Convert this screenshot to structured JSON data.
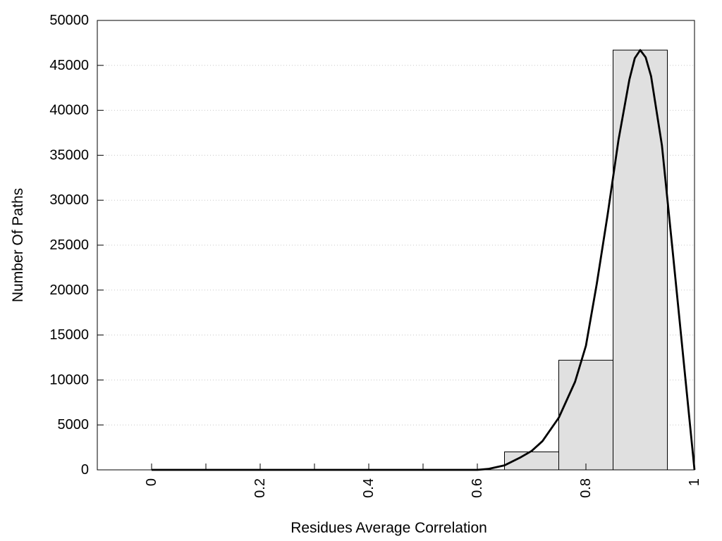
{
  "chart_data": {
    "type": "bar",
    "title": "",
    "xlabel": "Residues Average Correlation",
    "ylabel": "Number Of Paths",
    "xlim": [
      -0.1,
      1.0
    ],
    "ylim": [
      0,
      50000
    ],
    "x_ticks": [
      0,
      0.2,
      0.4,
      0.6,
      0.8,
      1
    ],
    "x_tick_labels": [
      "0",
      "0.2",
      "0.4",
      "0.6",
      "0.8",
      "1"
    ],
    "x_minor_ticks": [
      0.1,
      0.3,
      0.5
    ],
    "y_ticks": [
      0,
      5000,
      10000,
      15000,
      20000,
      25000,
      30000,
      35000,
      40000,
      45000,
      50000
    ],
    "y_tick_labels": [
      "0",
      "5000",
      "10000",
      "15000",
      "20000",
      "25000",
      "30000",
      "35000",
      "40000",
      "45000",
      "50000"
    ],
    "grid": "horizontal dotted",
    "bar_color": "#e0e0e0",
    "bars": [
      {
        "x0": 0.65,
        "x1": 0.75,
        "value": 2000
      },
      {
        "x0": 0.75,
        "x1": 0.85,
        "value": 12200
      },
      {
        "x0": 0.85,
        "x1": 0.95,
        "value": 46700
      }
    ],
    "curve": {
      "type": "line",
      "color": "#000000",
      "x": [
        0,
        0.1,
        0.2,
        0.3,
        0.4,
        0.5,
        0.6,
        0.62,
        0.65,
        0.68,
        0.7,
        0.72,
        0.75,
        0.78,
        0.8,
        0.82,
        0.84,
        0.86,
        0.88,
        0.89,
        0.9,
        0.91,
        0.92,
        0.94,
        0.96,
        0.98,
        1.0
      ],
      "y": [
        0,
        0,
        0,
        0,
        0,
        0,
        0,
        100,
        500,
        1400,
        2100,
        3200,
        5800,
        9800,
        13800,
        20700,
        28400,
        36700,
        43400,
        45800,
        46700,
        45900,
        43800,
        36100,
        24200,
        12100,
        0
      ]
    }
  }
}
